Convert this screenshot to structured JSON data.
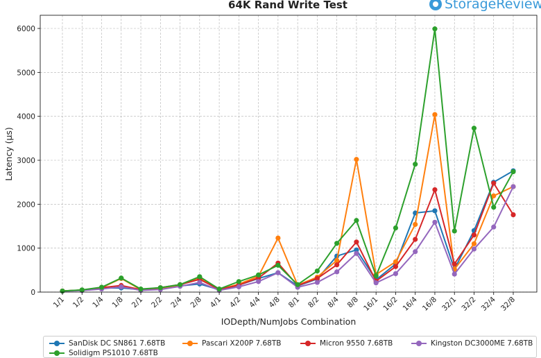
{
  "chart_data": {
    "type": "line",
    "title": "64K Rand Write Test",
    "xlabel": "IODepth/NumJobs Combination",
    "ylabel": "Latency (µs)",
    "ylim": [
      0,
      6300
    ],
    "yticks": [
      0,
      1000,
      2000,
      3000,
      4000,
      5000,
      6000
    ],
    "grid": true,
    "legend_position": "bottom",
    "categories": [
      "1/1",
      "1/2",
      "1/4",
      "1/8",
      "2/1",
      "2/2",
      "2/4",
      "2/8",
      "4/1",
      "4/2",
      "4/4",
      "4/8",
      "8/1",
      "8/2",
      "8/4",
      "8/8",
      "16/1",
      "16/2",
      "16/4",
      "16/8",
      "32/1",
      "32/2",
      "32/4",
      "32/8"
    ],
    "series": [
      {
        "name": "SanDisk DC SN861 7.68TB",
        "color": "#1f77b4",
        "values": [
          25,
          45,
          90,
          95,
          55,
          80,
          140,
          185,
          55,
          160,
          310,
          440,
          140,
          300,
          820,
          960,
          280,
          640,
          1800,
          1850,
          520,
          1400,
          2500,
          2760
        ]
      },
      {
        "name": "Pascari X200P 7.68TB",
        "color": "#ff7f0e",
        "values": [
          25,
          45,
          100,
          310,
          55,
          70,
          160,
          330,
          60,
          180,
          360,
          1230,
          160,
          340,
          720,
          3020,
          400,
          690,
          1540,
          4040,
          520,
          1100,
          2190,
          2400
        ]
      },
      {
        "name": "Micron 9550 7.68TB",
        "color": "#d62728",
        "values": [
          25,
          45,
          100,
          150,
          55,
          100,
          170,
          290,
          60,
          160,
          320,
          660,
          150,
          310,
          620,
          1140,
          250,
          580,
          1200,
          2330,
          640,
          1300,
          2480,
          1760
        ]
      },
      {
        "name": "Kingston DC3000ME 7.68TB",
        "color": "#9467bd",
        "values": [
          20,
          35,
          70,
          120,
          40,
          60,
          130,
          220,
          40,
          120,
          240,
          440,
          110,
          220,
          460,
          880,
          210,
          420,
          920,
          1590,
          410,
          980,
          1480,
          2400
        ]
      },
      {
        "name": "Solidigm PS1010 7.68TB",
        "color": "#2ca02c",
        "values": [
          25,
          50,
          110,
          320,
          70,
          100,
          170,
          350,
          70,
          240,
          390,
          610,
          170,
          480,
          1110,
          1630,
          370,
          1460,
          2910,
          5990,
          1390,
          3730,
          1930,
          2740
        ]
      }
    ]
  },
  "branding": {
    "text": "StorageReview",
    "color": "#3a9ad9"
  }
}
